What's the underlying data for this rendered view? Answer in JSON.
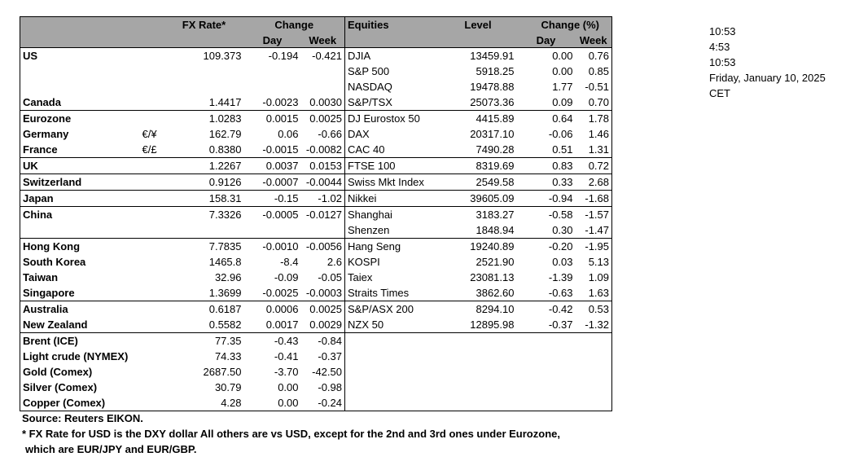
{
  "header": {
    "fx_rate": "FX Rate*",
    "change": "Change",
    "day": "Day",
    "week": "Week",
    "equities": "Equities",
    "level": "Level",
    "change_pct": "Change (%)",
    "eq_day": "Day",
    "eq_week": "Week"
  },
  "rows": [
    {
      "name": "US",
      "sub": false,
      "cur": "",
      "fx": "109.373",
      "fx_day": "-0.194",
      "fx_week": "-0.421",
      "eq": "DJIA",
      "level": "13459.91",
      "eq_day": "0.00",
      "eq_week": "0.76",
      "top": true
    },
    {
      "name": "",
      "sub": false,
      "cur": "",
      "fx": "",
      "fx_day": "",
      "fx_week": "",
      "eq": "S&P 500",
      "level": "5918.25",
      "eq_day": "0.00",
      "eq_week": "0.85",
      "top": false
    },
    {
      "name": "",
      "sub": false,
      "cur": "",
      "fx": "",
      "fx_day": "",
      "fx_week": "",
      "eq": "NASDAQ",
      "level": "19478.88",
      "eq_day": "1.77",
      "eq_week": "-0.51",
      "top": false
    },
    {
      "name": "Canada",
      "sub": false,
      "cur": "",
      "fx": "1.4417",
      "fx_day": "-0.0023",
      "fx_week": "0.0030",
      "eq": "S&P/TSX",
      "level": "25073.36",
      "eq_day": "0.09",
      "eq_week": "0.70",
      "top": false
    },
    {
      "name": "Eurozone",
      "sub": false,
      "cur": "",
      "fx": "1.0283",
      "fx_day": "0.0015",
      "fx_week": "0.0025",
      "eq": "DJ Eurostox 50",
      "level": "4415.89",
      "eq_day": "0.64",
      "eq_week": "1.78",
      "top": true
    },
    {
      "name": "Germany",
      "sub": true,
      "cur": "€/¥",
      "fx": "162.79",
      "fx_day": "0.06",
      "fx_week": "-0.66",
      "eq": "DAX",
      "level": "20317.10",
      "eq_day": "-0.06",
      "eq_week": "1.46",
      "top": false
    },
    {
      "name": "France",
      "sub": true,
      "cur": "€/£",
      "fx": "0.8380",
      "fx_day": "-0.0015",
      "fx_week": "-0.0082",
      "eq": "CAC 40",
      "level": "7490.28",
      "eq_day": "0.51",
      "eq_week": "1.31",
      "top": false
    },
    {
      "name": "UK",
      "sub": false,
      "cur": "",
      "fx": "1.2267",
      "fx_day": "0.0037",
      "fx_week": "0.0153",
      "eq": "FTSE 100",
      "level": "8319.69",
      "eq_day": "0.83",
      "eq_week": "0.72",
      "top": true
    },
    {
      "name": "Switzerland",
      "sub": false,
      "cur": "",
      "fx": "0.9126",
      "fx_day": "-0.0007",
      "fx_week": "-0.0044",
      "eq": "Swiss Mkt Index",
      "level": "2549.58",
      "eq_day": "0.33",
      "eq_week": "2.68",
      "top": true
    },
    {
      "name": "Japan",
      "sub": false,
      "cur": "",
      "fx": "158.31",
      "fx_day": "-0.15",
      "fx_week": "-1.02",
      "eq": "Nikkei",
      "level": "39605.09",
      "eq_day": "-0.94",
      "eq_week": "-1.68",
      "top": true
    },
    {
      "name": "China",
      "sub": false,
      "cur": "",
      "fx": "7.3326",
      "fx_day": "-0.0005",
      "fx_week": "-0.0127",
      "eq": "Shanghai",
      "level": "3183.27",
      "eq_day": "-0.58",
      "eq_week": "-1.57",
      "top": true
    },
    {
      "name": "",
      "sub": false,
      "cur": "",
      "fx": "",
      "fx_day": "",
      "fx_week": "",
      "eq": "Shenzen",
      "level": "1848.94",
      "eq_day": "0.30",
      "eq_week": "-1.47",
      "top": false
    },
    {
      "name": "Hong Kong",
      "sub": false,
      "cur": "",
      "fx": "7.7835",
      "fx_day": "-0.0010",
      "fx_week": "-0.0056",
      "eq": "Hang Seng",
      "level": "19240.89",
      "eq_day": "-0.20",
      "eq_week": "-1.95",
      "top": true
    },
    {
      "name": "South Korea",
      "sub": false,
      "cur": "",
      "fx": "1465.8",
      "fx_day": "-8.4",
      "fx_week": "2.6",
      "eq": "KOSPI",
      "level": "2521.90",
      "eq_day": "0.03",
      "eq_week": "5.13",
      "top": false
    },
    {
      "name": "Taiwan",
      "sub": false,
      "cur": "",
      "fx": "32.96",
      "fx_day": "-0.09",
      "fx_week": "-0.05",
      "eq": "Taiex",
      "level": "23081.13",
      "eq_day": "-1.39",
      "eq_week": "1.09",
      "top": false
    },
    {
      "name": "Singapore",
      "sub": false,
      "cur": "",
      "fx": "1.3699",
      "fx_day": "-0.0025",
      "fx_week": "-0.0003",
      "eq": "Straits Times",
      "level": "3862.60",
      "eq_day": "-0.63",
      "eq_week": "1.63",
      "top": false
    },
    {
      "name": "Australia",
      "sub": false,
      "cur": "",
      "fx": "0.6187",
      "fx_day": "0.0006",
      "fx_week": "0.0025",
      "eq": "S&P/ASX  200",
      "level": "8294.10",
      "eq_day": "-0.42",
      "eq_week": "0.53",
      "top": true
    },
    {
      "name": "New Zealand",
      "sub": false,
      "cur": "",
      "fx": "0.5582",
      "fx_day": "0.0017",
      "fx_week": "0.0029",
      "eq": "NZX 50",
      "level": "12895.98",
      "eq_day": "-0.37",
      "eq_week": "-1.32",
      "top": false
    },
    {
      "name": "Brent (ICE)",
      "sub": false,
      "cur": "",
      "fx": "77.35",
      "fx_day": "-0.43",
      "fx_week": "-0.84",
      "eq": "",
      "level": "",
      "eq_day": "",
      "eq_week": "",
      "top": true
    },
    {
      "name": "Light crude (NYMEX)",
      "sub": false,
      "cur": "",
      "fx": "74.33",
      "fx_day": "-0.41",
      "fx_week": "-0.37",
      "eq": "",
      "level": "",
      "eq_day": "",
      "eq_week": "",
      "top": false
    },
    {
      "name": "Gold (Comex)",
      "sub": false,
      "cur": "",
      "fx": "2687.50",
      "fx_day": "-3.70",
      "fx_week": "-42.50",
      "eq": "",
      "level": "",
      "eq_day": "",
      "eq_week": "",
      "top": false
    },
    {
      "name": "Silver (Comex)",
      "sub": false,
      "cur": "",
      "fx": "30.79",
      "fx_day": "0.00",
      "fx_week": "-0.98",
      "eq": "",
      "level": "",
      "eq_day": "",
      "eq_week": "",
      "top": false
    },
    {
      "name": "Copper (Comex)",
      "sub": false,
      "cur": "",
      "fx": "4.28",
      "fx_day": "0.00",
      "fx_week": "-0.24",
      "eq": "",
      "level": "",
      "eq_day": "",
      "eq_week": "",
      "top": false
    }
  ],
  "side": [
    "10:53",
    "4:53",
    "10:53",
    "Friday, January 10, 2025",
    "CET"
  ],
  "notes": {
    "source": "Source:  Reuters EIKON.",
    "footnote1": "* FX Rate for USD is the DXY dollar  All others are vs USD, except for the 2nd and 3rd ones under Eurozone,",
    "footnote2": "which are EUR/JPY and EUR/GBP."
  }
}
